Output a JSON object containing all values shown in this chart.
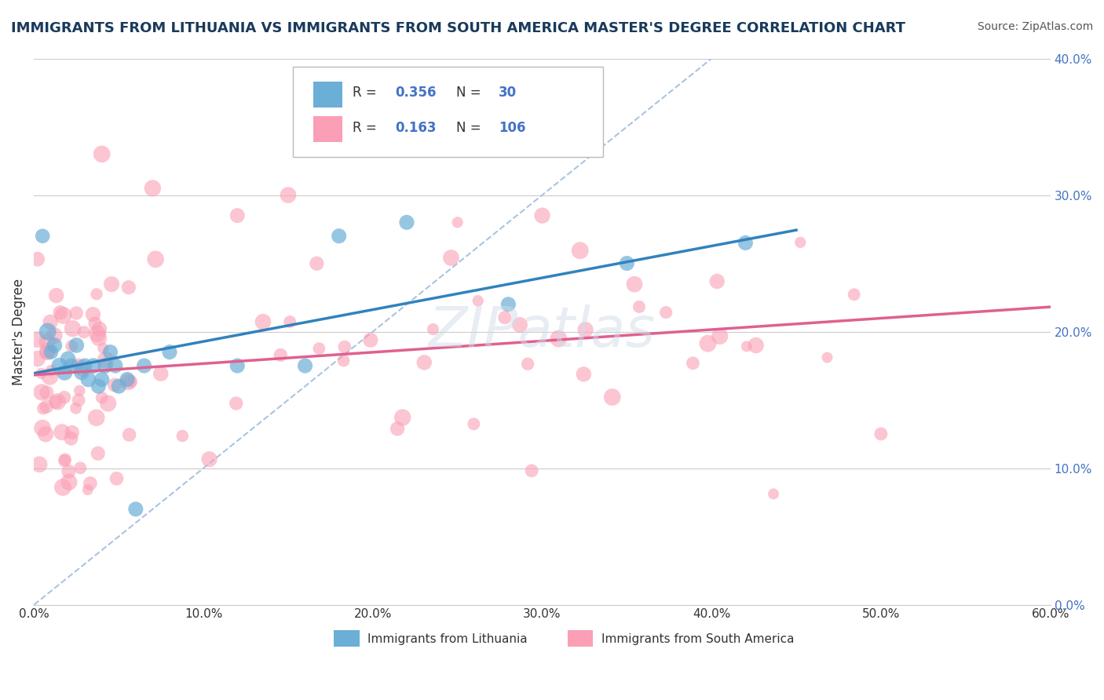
{
  "title": "IMMIGRANTS FROM LITHUANIA VS IMMIGRANTS FROM SOUTH AMERICA MASTER'S DEGREE CORRELATION CHART",
  "source": "Source: ZipAtlas.com",
  "ylabel": "Master's Degree",
  "xmin": 0.0,
  "xmax": 0.6,
  "ymin": 0.0,
  "ymax": 0.4,
  "xticks": [
    0.0,
    0.1,
    0.2,
    0.3,
    0.4,
    0.5,
    0.6
  ],
  "yticks": [
    0.0,
    0.1,
    0.2,
    0.3,
    0.4
  ],
  "ytick_labels_right": [
    "0.0%",
    "10.0%",
    "20.0%",
    "30.0%",
    "40.0%"
  ],
  "xtick_labels": [
    "0.0%",
    "10.0%",
    "20.0%",
    "30.0%",
    "40.0%",
    "50.0%",
    "60.0%"
  ],
  "R_blue": 0.356,
  "N_blue": 30,
  "R_pink": 0.163,
  "N_pink": 106,
  "blue_scatter_color": "#6baed6",
  "pink_scatter_color": "#fa9fb5",
  "blue_line_color": "#3182bd",
  "pink_line_color": "#e06090",
  "watermark": "ZIPatlas",
  "legend_label_blue": "Immigrants from Lithuania",
  "legend_label_pink": "Immigrants from South America",
  "blue_x": [
    0.005,
    0.008,
    0.01,
    0.012,
    0.015,
    0.018,
    0.02,
    0.022,
    0.025,
    0.028,
    0.03,
    0.032,
    0.035,
    0.038,
    0.04,
    0.042,
    0.045,
    0.048,
    0.05,
    0.055,
    0.06,
    0.065,
    0.08,
    0.12,
    0.16,
    0.18,
    0.22,
    0.28,
    0.35,
    0.42
  ],
  "blue_y": [
    0.27,
    0.2,
    0.185,
    0.19,
    0.175,
    0.17,
    0.18,
    0.175,
    0.19,
    0.17,
    0.175,
    0.165,
    0.175,
    0.16,
    0.165,
    0.175,
    0.185,
    0.175,
    0.16,
    0.165,
    0.07,
    0.175,
    0.185,
    0.175,
    0.175,
    0.27,
    0.28,
    0.22,
    0.25,
    0.265
  ],
  "blue_sizes": [
    180,
    250,
    180,
    200,
    220,
    210,
    200,
    190,
    200,
    190,
    190,
    200,
    200,
    190,
    190,
    200,
    190,
    190,
    190,
    190,
    190,
    190,
    190,
    190,
    190,
    190,
    190,
    190,
    190,
    190
  ]
}
